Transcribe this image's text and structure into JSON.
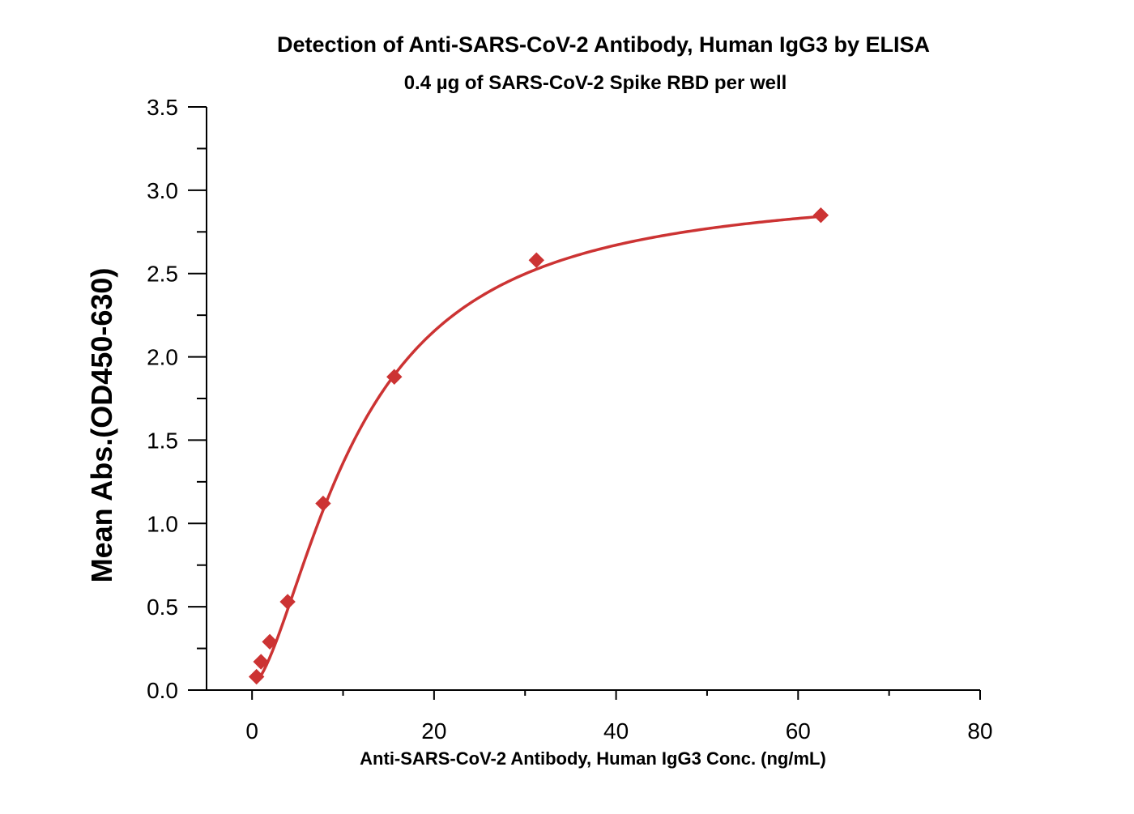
{
  "chart_data": {
    "type": "scatter",
    "title": "Detection of Anti-SARS-CoV-2 Antibody, Human IgG3 by ELISA",
    "subtitle": "0.4 µg of SARS-CoV-2 Spike RBD per well",
    "xlabel": "Anti-SARS-CoV-2 Antibody, Human IgG3 Conc. (ng/mL)",
    "ylabel": "Mean Abs.(OD450-630)",
    "xlim": [
      -5,
      80
    ],
    "ylim": [
      0,
      3.5
    ],
    "x_ticks": [
      0,
      20,
      40,
      60,
      80
    ],
    "x_tick_labels": [
      "0",
      "20",
      "40",
      "60",
      "80"
    ],
    "x_minor_ticks": [
      10,
      30,
      50,
      70
    ],
    "y_ticks": [
      0,
      0.5,
      1.0,
      1.5,
      2.0,
      2.5,
      3.0,
      3.5
    ],
    "y_tick_labels": [
      "0.0",
      "0.5",
      "1.0",
      "1.5",
      "2.0",
      "2.5",
      "3.0",
      "3.5"
    ],
    "y_minor_ticks": [
      0.25,
      0.75,
      1.25,
      1.75,
      2.25,
      2.75,
      3.25
    ],
    "grid": false,
    "legend": "none",
    "color": "#cc3333",
    "marker": "diamond",
    "series": [
      {
        "x": [
          0.49,
          0.98,
          1.95,
          3.91,
          7.81,
          15.63,
          31.25,
          62.5
        ],
        "y": [
          0.08,
          0.17,
          0.29,
          0.53,
          1.12,
          1.88,
          2.58,
          2.85
        ]
      }
    ],
    "fit_curve": {
      "type": "4PL",
      "bottom": 0.03,
      "top": 3.03,
      "ec50": 11.5,
      "hill": 1.6
    }
  }
}
